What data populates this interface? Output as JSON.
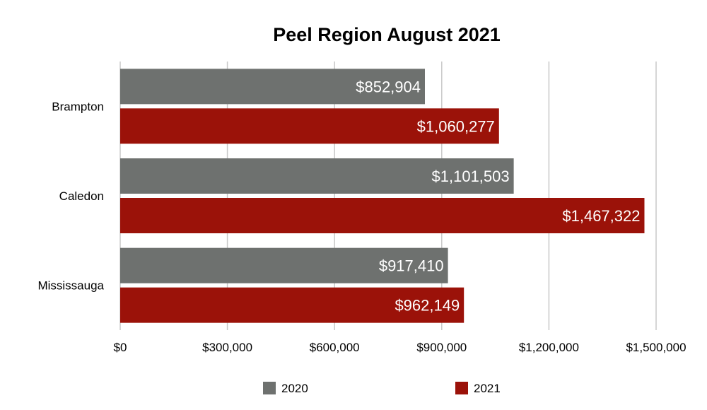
{
  "chart_data": {
    "type": "bar",
    "orientation": "horizontal",
    "title": "Peel Region August 2021",
    "categories": [
      "Brampton",
      "Caledon",
      "Mississauga"
    ],
    "series": [
      {
        "name": "2020",
        "color": "#6e716f",
        "values": [
          852904,
          1101503,
          917410
        ],
        "labels": [
          "$852,904",
          "$1,101,503",
          "$917,410"
        ]
      },
      {
        "name": "2021",
        "color": "#9b1209",
        "values": [
          1060277,
          1467322,
          962149
        ],
        "labels": [
          "$1,060,277",
          "$1,467,322",
          "$962,149"
        ]
      }
    ],
    "xlim": [
      0,
      1500000
    ],
    "xticks": [
      0,
      300000,
      600000,
      900000,
      1200000,
      1500000
    ],
    "xtick_labels": [
      "$0",
      "$300,000",
      "$600,000",
      "$900,000",
      "$1,200,000",
      "$1,500,000"
    ],
    "xlabel": "",
    "ylabel": "",
    "grid": true,
    "legend_position": "bottom"
  }
}
